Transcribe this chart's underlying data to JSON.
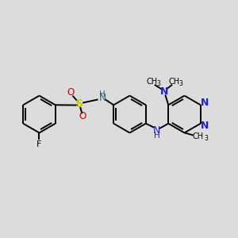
{
  "background_color": "#dcdcdc",
  "bond_color": "#000000",
  "N_color": "#2020cc",
  "S_color": "#cccc00",
  "O_color": "#cc0000",
  "F_color": "#000000",
  "H_color": "#336666",
  "figsize": [
    3.0,
    3.0
  ],
  "dpi": 100,
  "xlim": [
    0,
    10
  ],
  "ylim": [
    0,
    10
  ]
}
